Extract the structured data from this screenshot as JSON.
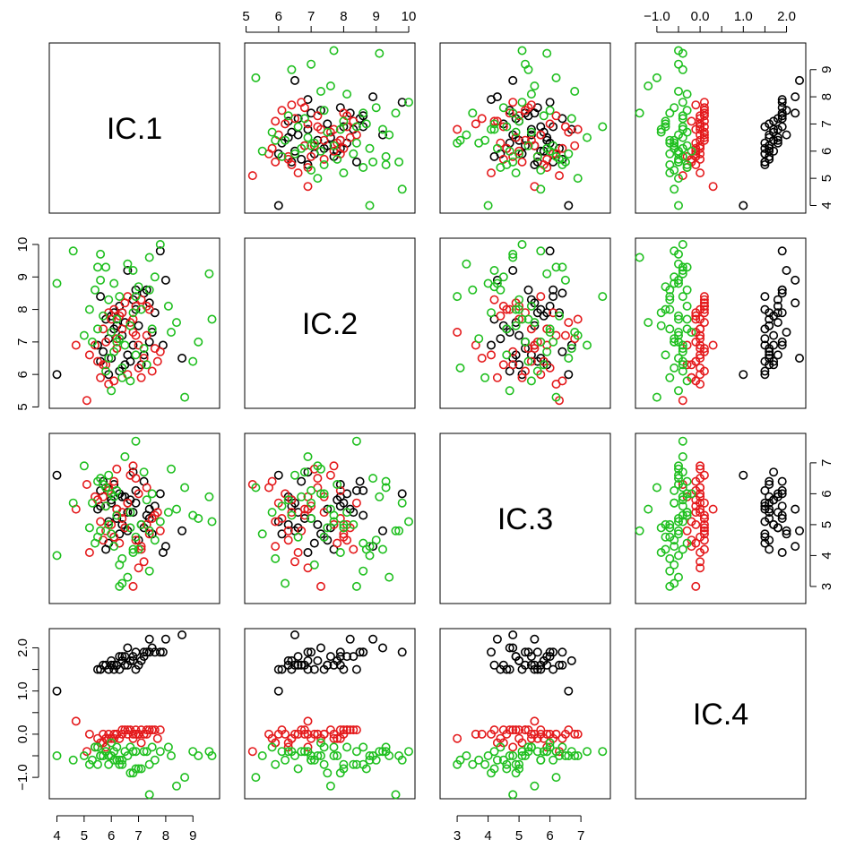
{
  "chart_data": {
    "type": "scatter",
    "title": "",
    "variables": [
      "IC.1",
      "IC.2",
      "IC.3",
      "IC.4"
    ],
    "groups": [
      {
        "color": "#000000"
      },
      {
        "color": "#e41a1c"
      },
      {
        "color": "#1fbf1f"
      }
    ],
    "ranges": {
      "IC.1": [
        3.95,
        9.75
      ],
      "IC.2": [
        5.15,
        10.0
      ],
      "IC.3": [
        2.65,
        7.75
      ],
      "IC.4": [
        -1.35,
        2.3
      ]
    },
    "ticks": {
      "IC.1": [
        {
          "value": 4,
          "label": "4"
        },
        {
          "value": 5,
          "label": "5"
        },
        {
          "value": 6,
          "label": "6"
        },
        {
          "value": 7,
          "label": "7"
        },
        {
          "value": 8,
          "label": "8"
        },
        {
          "value": 9,
          "label": "9"
        }
      ],
      "IC.2": [
        {
          "value": 5,
          "label": "5"
        },
        {
          "value": 6,
          "label": "6"
        },
        {
          "value": 7,
          "label": "7"
        },
        {
          "value": 8,
          "label": "8"
        },
        {
          "value": 9,
          "label": "9"
        },
        {
          "value": 10,
          "label": "10"
        }
      ],
      "IC.3": [
        {
          "value": 3,
          "label": "3"
        },
        {
          "value": 4,
          "label": "4"
        },
        {
          "value": 5,
          "label": "5"
        },
        {
          "value": 6,
          "label": "6"
        },
        {
          "value": 7,
          "label": "7"
        }
      ],
      "IC.4": [
        {
          "value": -1,
          "label": "−1.0"
        },
        {
          "value": -0.5,
          "label": ""
        },
        {
          "value": 0,
          "label": "0.0"
        },
        {
          "value": 0.5,
          "label": ""
        },
        {
          "value": 1,
          "label": "1.0"
        },
        {
          "value": 1.5,
          "label": ""
        },
        {
          "value": 2,
          "label": "2.0"
        }
      ]
    },
    "points": [
      [
        6.6,
        6.6,
        5.4,
        1.6,
        0
      ],
      [
        7.2,
        8.5,
        6.4,
        1.9,
        0
      ],
      [
        5.9,
        7.1,
        4.4,
        1.5,
        0
      ],
      [
        8.6,
        6.5,
        4.8,
        2.3,
        0
      ],
      [
        6.4,
        7.9,
        5.9,
        1.8,
        0
      ],
      [
        7.1,
        6.3,
        5.0,
        1.7,
        0
      ],
      [
        6.9,
        8.0,
        5.7,
        1.5,
        0
      ],
      [
        7.5,
        7.3,
        4.7,
        2.0,
        0
      ],
      [
        5.6,
        8.4,
        6.1,
        1.5,
        0
      ],
      [
        6.2,
        6.8,
        5.2,
        1.6,
        0
      ],
      [
        7.8,
        9.8,
        6.0,
        1.9,
        0
      ],
      [
        6.0,
        6.5,
        5.7,
        1.6,
        0
      ],
      [
        6.5,
        7.6,
        4.9,
        1.8,
        0
      ],
      [
        7.4,
        8.2,
        5.5,
        2.2,
        0
      ],
      [
        5.8,
        7.7,
        4.2,
        1.6,
        0
      ],
      [
        6.8,
        6.9,
        6.7,
        1.7,
        0
      ],
      [
        7.3,
        8.6,
        5.3,
        1.9,
        0
      ],
      [
        6.1,
        7.4,
        4.6,
        1.5,
        0
      ],
      [
        6.7,
        6.4,
        5.8,
        1.7,
        0
      ],
      [
        8.0,
        8.9,
        4.3,
        2.2,
        0
      ],
      [
        5.9,
        6.0,
        5.1,
        1.5,
        0
      ],
      [
        6.3,
        8.1,
        6.0,
        1.8,
        0
      ],
      [
        7.0,
        7.5,
        4.5,
        1.6,
        0
      ],
      [
        6.5,
        6.3,
        5.9,
        1.6,
        0
      ],
      [
        7.6,
        7.9,
        5.6,
        1.9,
        0
      ],
      [
        4.0,
        6.0,
        6.6,
        1.0,
        0
      ],
      [
        6.4,
        7.2,
        5.0,
        1.7,
        0
      ],
      [
        5.7,
        6.7,
        6.4,
        1.6,
        0
      ],
      [
        6.8,
        8.3,
        5.4,
        1.8,
        0
      ],
      [
        7.2,
        6.6,
        4.9,
        1.8,
        0
      ],
      [
        6.1,
        7.9,
        6.3,
        1.6,
        0
      ],
      [
        5.6,
        6.4,
        5.6,
        1.5,
        0
      ],
      [
        6.6,
        9.2,
        4.8,
        2.0,
        0
      ],
      [
        7.9,
        6.9,
        4.1,
        1.9,
        0
      ],
      [
        6.2,
        7.5,
        5.5,
        1.6,
        0
      ],
      [
        6.9,
        8.6,
        6.1,
        1.9,
        0
      ],
      [
        7.4,
        7.0,
        5.2,
        1.9,
        0
      ],
      [
        6.3,
        6.1,
        4.7,
        1.5,
        0
      ],
      [
        6.0,
        7.8,
        5.8,
        1.7,
        0
      ],
      [
        5.5,
        6.9,
        5.5,
        1.5,
        0
      ],
      [
        6.2,
        6.8,
        5.5,
        0.0,
        1
      ],
      [
        5.1,
        5.2,
        6.3,
        -0.4,
        1
      ],
      [
        6.8,
        7.7,
        6.9,
        0.0,
        1
      ],
      [
        7.3,
        8.1,
        5.0,
        0.1,
        1
      ],
      [
        5.7,
        6.3,
        4.5,
        -0.2,
        1
      ],
      [
        6.4,
        7.4,
        5.4,
        0.0,
        1
      ],
      [
        7.8,
        6.7,
        4.8,
        0.1,
        1
      ],
      [
        5.9,
        7.9,
        6.1,
        -0.1,
        1
      ],
      [
        6.6,
        6.0,
        5.7,
        0.0,
        1
      ],
      [
        7.1,
        8.3,
        4.2,
        0.1,
        1
      ],
      [
        5.4,
        6.9,
        5.9,
        -0.3,
        1
      ],
      [
        6.9,
        7.2,
        6.5,
        0.0,
        1
      ],
      [
        7.5,
        6.1,
        5.2,
        0.1,
        1
      ],
      [
        6.1,
        8.0,
        4.6,
        0.0,
        1
      ],
      [
        5.6,
        5.9,
        5.1,
        -0.2,
        1
      ],
      [
        6.7,
        7.6,
        6.6,
        0.1,
        1
      ],
      [
        7.2,
        6.5,
        3.8,
        0.0,
        1
      ],
      [
        5.8,
        7.0,
        5.6,
        -0.1,
        1
      ],
      [
        6.5,
        8.2,
        4.9,
        0.1,
        1
      ],
      [
        7.0,
        6.2,
        6.0,
        0.0,
        1
      ],
      [
        4.7,
        6.9,
        5.5,
        0.3,
        1
      ],
      [
        6.3,
        7.8,
        4.4,
        -0.1,
        1
      ],
      [
        7.6,
        6.8,
        5.3,
        0.1,
        1
      ],
      [
        5.9,
        5.7,
        6.2,
        0.0,
        1
      ],
      [
        6.8,
        7.3,
        3.0,
        -0.1,
        1
      ],
      [
        7.4,
        8.0,
        4.7,
        0.1,
        1
      ],
      [
        5.5,
        6.4,
        5.8,
        -0.1,
        1
      ],
      [
        6.2,
        7.1,
        6.8,
        0.0,
        1
      ],
      [
        7.1,
        5.9,
        4.3,
        -0.2,
        1
      ],
      [
        6.0,
        7.7,
        5.0,
        -0.1,
        1
      ],
      [
        5.2,
        6.6,
        4.1,
        0.0,
        1
      ],
      [
        6.6,
        8.4,
        5.7,
        0.1,
        1
      ],
      [
        7.3,
        7.2,
        6.2,
        0.0,
        1
      ],
      [
        5.8,
        6.3,
        4.8,
        -0.3,
        1
      ],
      [
        6.4,
        7.9,
        5.2,
        0.1,
        1
      ],
      [
        7.0,
        6.9,
        3.6,
        0.0,
        1
      ],
      [
        6.1,
        5.8,
        6.4,
        -0.1,
        1
      ],
      [
        5.7,
        7.4,
        5.9,
        0.0,
        1
      ],
      [
        6.9,
        8.1,
        4.5,
        0.1,
        1
      ],
      [
        7.7,
        6.4,
        5.4,
        -0.1,
        1
      ],
      [
        5.3,
        7.0,
        5.7,
        -0.6,
        2
      ],
      [
        6.8,
        9.2,
        4.2,
        -0.4,
        2
      ],
      [
        5.9,
        6.5,
        6.6,
        -0.5,
        2
      ],
      [
        7.4,
        8.6,
        3.5,
        -0.7,
        2
      ],
      [
        6.2,
        7.7,
        5.3,
        -0.3,
        2
      ],
      [
        8.7,
        5.3,
        6.2,
        -1.0,
        2
      ],
      [
        5.6,
        9.7,
        4.8,
        -0.5,
        2
      ],
      [
        6.5,
        6.9,
        7.2,
        -0.4,
        2
      ],
      [
        7.1,
        8.0,
        5.0,
        -0.8,
        2
      ],
      [
        4.0,
        8.8,
        4.0,
        -0.5,
        2
      ],
      [
        6.0,
        7.3,
        6.0,
        -0.2,
        2
      ],
      [
        7.6,
        9.0,
        4.5,
        -0.6,
        2
      ],
      [
        5.8,
        6.1,
        5.6,
        -0.4,
        2
      ],
      [
        6.3,
        8.4,
        3.0,
        -0.7,
        2
      ],
      [
        9.2,
        7.0,
        5.2,
        -0.5,
        2
      ],
      [
        5.5,
        9.3,
        6.4,
        -0.3,
        2
      ],
      [
        6.7,
        7.5,
        4.9,
        -0.9,
        2
      ],
      [
        7.3,
        6.3,
        5.8,
        -0.4,
        2
      ],
      [
        6.1,
        8.8,
        4.3,
        -0.6,
        2
      ],
      [
        5.0,
        7.2,
        6.9,
        -0.5,
        2
      ],
      [
        8.1,
        8.1,
        5.4,
        -0.3,
        2
      ],
      [
        6.4,
        5.9,
        3.9,
        -0.7,
        2
      ],
      [
        9.6,
        9.1,
        5.9,
        -0.4,
        2
      ],
      [
        5.7,
        7.8,
        6.3,
        -0.5,
        2
      ],
      [
        6.9,
        6.6,
        4.6,
        -0.8,
        2
      ],
      [
        7.8,
        10.0,
        5.1,
        -0.4,
        2
      ],
      [
        6.2,
        7.0,
        6.1,
        -0.6,
        2
      ],
      [
        5.4,
        8.6,
        4.4,
        -0.3,
        2
      ],
      [
        8.4,
        7.6,
        5.5,
        -1.2,
        2
      ],
      [
        6.6,
        9.4,
        3.3,
        -0.5,
        2
      ],
      [
        7.2,
        6.8,
        6.7,
        -0.4,
        2
      ],
      [
        5.9,
        8.3,
        5.0,
        -0.7,
        2
      ],
      [
        6.0,
        5.5,
        4.7,
        -0.5,
        2
      ],
      [
        7.5,
        7.4,
        6.0,
        -0.3,
        2
      ],
      [
        4.6,
        9.8,
        5.7,
        -0.6,
        2
      ],
      [
        6.8,
        7.9,
        4.1,
        -0.9,
        2
      ],
      [
        9.0,
        6.4,
        5.3,
        -0.4,
        2
      ],
      [
        5.6,
        8.9,
        6.5,
        -0.5,
        2
      ],
      [
        6.3,
        7.1,
        3.7,
        -0.6,
        2
      ],
      [
        7.4,
        9.6,
        4.8,
        -1.4,
        2
      ],
      [
        6.1,
        6.7,
        5.9,
        -0.4,
        2
      ],
      [
        5.2,
        8.0,
        4.9,
        -0.7,
        2
      ],
      [
        8.2,
        7.3,
        6.8,
        -0.5,
        2
      ],
      [
        6.7,
        5.8,
        5.4,
        -0.3,
        2
      ],
      [
        7.0,
        8.7,
        4.2,
        -0.8,
        2
      ],
      [
        5.8,
        9.3,
        6.2,
        -0.4,
        2
      ],
      [
        6.4,
        6.2,
        3.1,
        -0.6,
        2
      ],
      [
        9.7,
        7.7,
        5.1,
        -0.5,
        2
      ],
      [
        6.9,
        8.4,
        7.7,
        -0.4,
        2
      ],
      [
        5.5,
        7.4,
        4.6,
        -0.7,
        2
      ]
    ]
  }
}
